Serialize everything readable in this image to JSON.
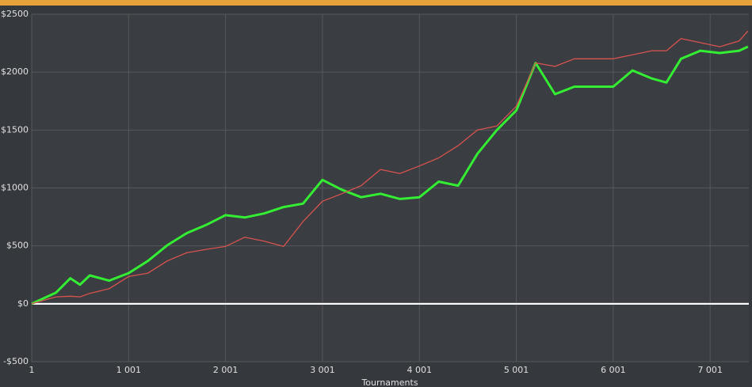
{
  "chart_data": {
    "type": "line",
    "xlabel": "Tournaments",
    "x": [
      1,
      250,
      400,
      500,
      600,
      800,
      1001,
      1200,
      1400,
      1600,
      1800,
      2001,
      2200,
      2400,
      2600,
      2800,
      3001,
      3200,
      3400,
      3600,
      3800,
      4001,
      4200,
      4400,
      4600,
      4800,
      5001,
      5200,
      5400,
      5600,
      5800,
      6001,
      6200,
      6400,
      6550,
      6700,
      6900,
      7100,
      7300,
      7390
    ],
    "series": [
      {
        "color": "#33ee33",
        "width": 3,
        "values": [
          0,
          95,
          220,
          165,
          245,
          200,
          265,
          370,
          505,
          610,
          680,
          765,
          745,
          780,
          835,
          865,
          1070,
          985,
          920,
          950,
          905,
          920,
          1055,
          1020,
          1295,
          1500,
          1670,
          2080,
          1810,
          1875,
          1875,
          1875,
          2015,
          1945,
          1910,
          2115,
          2185,
          2165,
          2185,
          2220
        ]
      },
      {
        "color": "#d9534f",
        "width": 1.3,
        "values": [
          0,
          60,
          65,
          60,
          90,
          130,
          235,
          265,
          370,
          440,
          470,
          495,
          575,
          540,
          495,
          710,
          885,
          950,
          1020,
          1160,
          1125,
          1190,
          1260,
          1365,
          1500,
          1535,
          1705,
          2080,
          2050,
          2115,
          2115,
          2115,
          2150,
          2185,
          2185,
          2290,
          2255,
          2220,
          2270,
          2355
        ]
      }
    ],
    "xlim": [
      1,
      7400
    ],
    "xticks": [
      1,
      {
        "value": 1001,
        "label": "1 001"
      },
      {
        "value": 2001,
        "label": "2 001"
      },
      {
        "value": 3001,
        "label": "3 001"
      },
      {
        "value": 4001,
        "label": "4 001"
      },
      {
        "value": 5001,
        "label": "5 001"
      },
      {
        "value": 6001,
        "label": "6 001"
      },
      {
        "value": 7001,
        "label": "7 001"
      }
    ],
    "ylim": [
      -500,
      2500
    ],
    "yticks": [
      {
        "value": -500,
        "label": "-$500"
      },
      {
        "value": 0,
        "label": "$0"
      },
      {
        "value": 500,
        "label": "$500"
      },
      {
        "value": 1000,
        "label": "$1000"
      },
      {
        "value": 1500,
        "label": "$1500"
      },
      {
        "value": 2000,
        "label": "$2000"
      },
      {
        "value": 2500,
        "label": "$2500"
      }
    ],
    "grid": true
  }
}
